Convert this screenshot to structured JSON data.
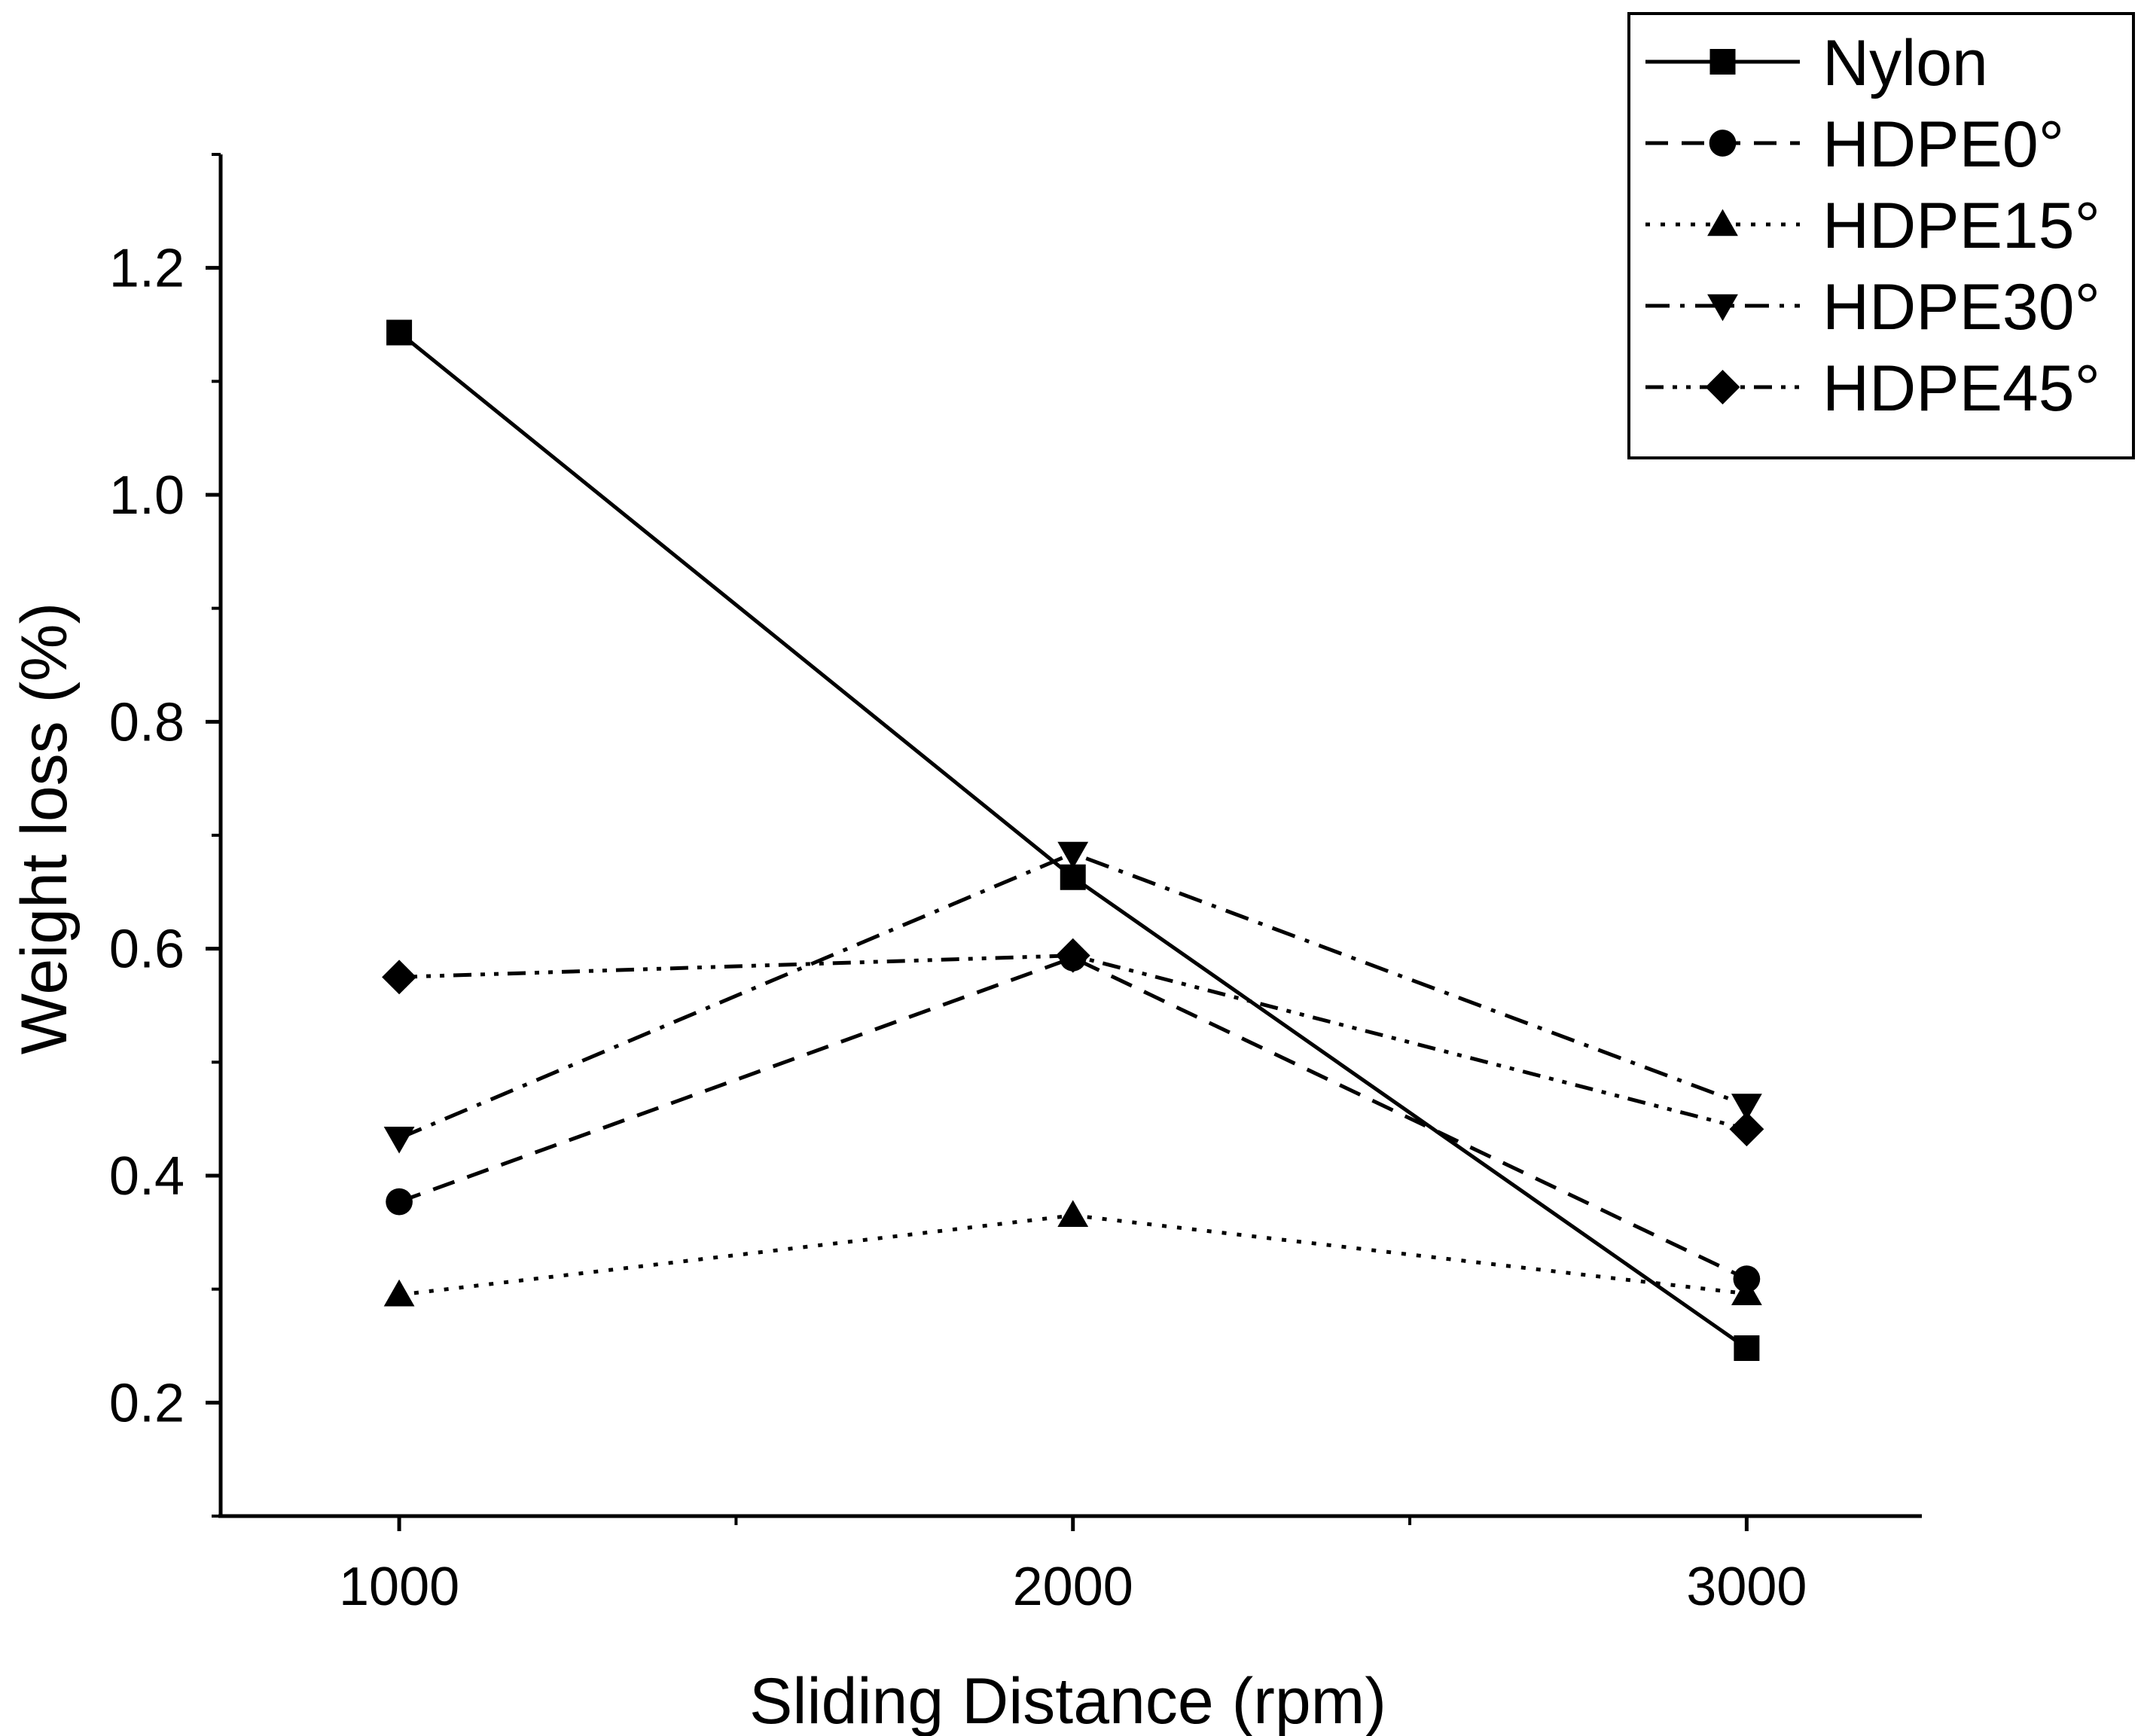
{
  "chart_data": {
    "type": "line",
    "title": "",
    "xlabel": "Sliding Distance (rpm)",
    "ylabel": "Weight loss (%)",
    "xlim": [
      735,
      3260
    ],
    "ylim": [
      0.1,
      1.3
    ],
    "x_ticks": [
      "1000",
      "2000",
      "3000"
    ],
    "y_ticks": [
      "0.2",
      "0.4",
      "0.6",
      "0.8",
      "1.0",
      "1.2"
    ],
    "legend_position": "top-right",
    "x": [
      1000,
      2000,
      3000
    ],
    "series": [
      {
        "name": "Nylon",
        "values": [
          1.143,
          0.663,
          0.248
        ],
        "line_style": "solid",
        "marker": "square"
      },
      {
        "name": "HDPE0°",
        "values": [
          0.377,
          0.592,
          0.309
        ],
        "line_style": "dashed",
        "marker": "circle"
      },
      {
        "name": "HDPE15°",
        "values": [
          0.295,
          0.365,
          0.296
        ],
        "line_style": "dotted",
        "marker": "triangle-up"
      },
      {
        "name": "HDPE30°",
        "values": [
          0.433,
          0.684,
          0.462
        ],
        "line_style": "dash-dot",
        "marker": "triangle-down"
      },
      {
        "name": "HDPE45°",
        "values": [
          0.575,
          0.594,
          0.441
        ],
        "line_style": "dash-dot-dot",
        "marker": "diamond"
      }
    ]
  }
}
